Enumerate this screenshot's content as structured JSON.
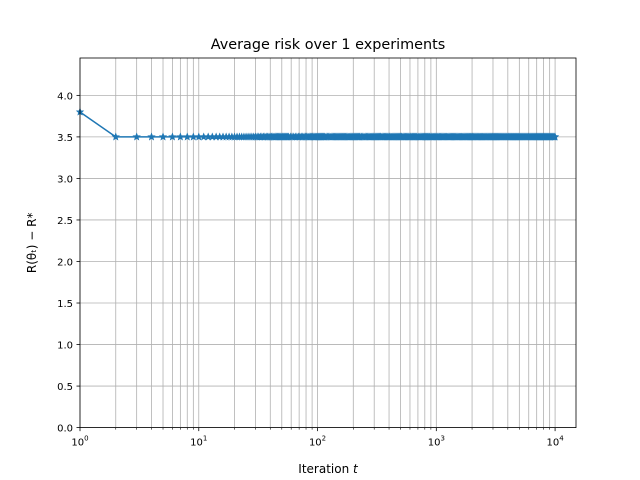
{
  "chart_data": {
    "type": "line",
    "title": "Average risk over 1 experiments",
    "xlabel_prefix": "Iteration ",
    "xlabel_var": "t",
    "ylabel": "R(θₜ) − R*",
    "xscale": "log",
    "xlim": [
      1,
      15000
    ],
    "ylim": [
      0,
      4.45
    ],
    "grid": true,
    "xticks": [
      {
        "value": 1,
        "base": "10",
        "exp": "0"
      },
      {
        "value": 10,
        "base": "10",
        "exp": "1"
      },
      {
        "value": 100,
        "base": "10",
        "exp": "2"
      },
      {
        "value": 1000,
        "base": "10",
        "exp": "3"
      },
      {
        "value": 10000,
        "base": "10",
        "exp": "4"
      }
    ],
    "yticks": [
      "0.0",
      "0.5",
      "1.0",
      "1.5",
      "2.0",
      "2.5",
      "3.0",
      "3.5",
      "4.0"
    ],
    "series_color": "#1f77b4",
    "marker": "star",
    "series": [
      {
        "x_start": 1,
        "x_end": 10000,
        "y_first": 3.8,
        "y_rest": 3.5
      }
    ]
  }
}
